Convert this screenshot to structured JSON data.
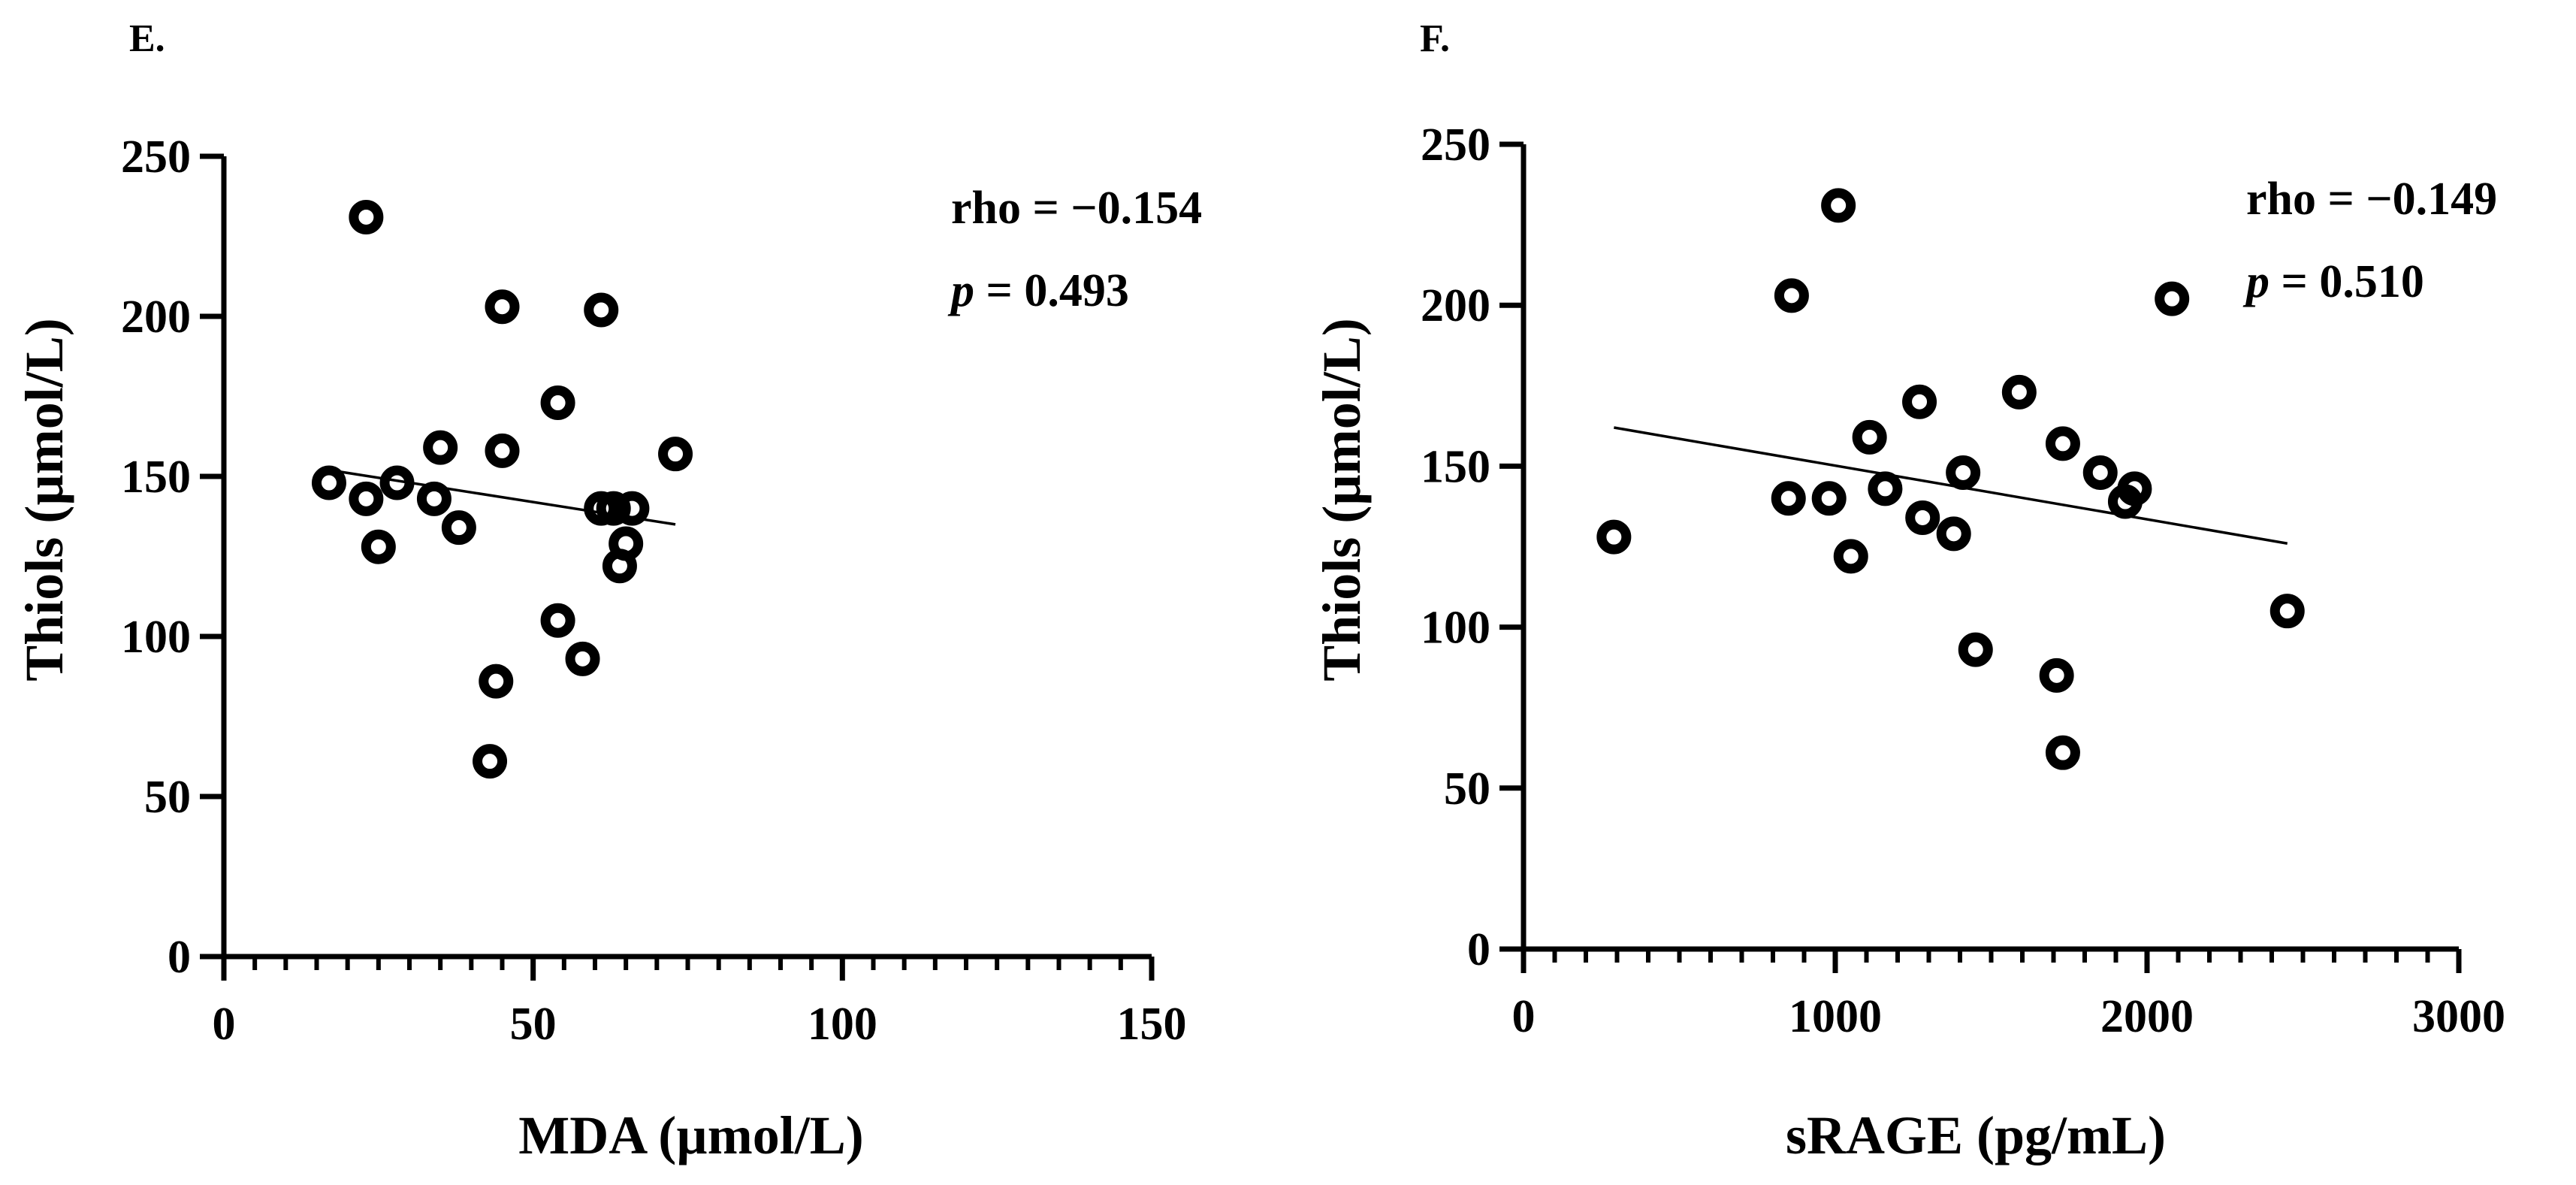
{
  "figure": {
    "panels": [
      "E.",
      "F."
    ]
  },
  "chart_data": [
    {
      "type": "scatter",
      "panel_label": "E.",
      "title": "",
      "xlabel": "MDA (µmol/L)",
      "ylabel": "Thiols (µmol/L)",
      "xlim": [
        0,
        150
      ],
      "ylim": [
        0,
        250
      ],
      "xticks": [
        0,
        50,
        100,
        150
      ],
      "yticks": [
        0,
        50,
        100,
        150,
        200,
        250
      ],
      "x_minor_step": 5,
      "xtick_labels": [
        "0",
        "50",
        "100",
        "150"
      ],
      "ytick_labels": [
        "0",
        "50",
        "100",
        "150",
        "200",
        "250"
      ],
      "grid": false,
      "stats": {
        "rho": "rho = −0.154",
        "p_symbol": "p",
        "p_value": " = 0.493"
      },
      "trendline": {
        "x": [
          17,
          73
        ],
        "y": [
          152,
          135
        ]
      },
      "points": [
        {
          "x": 23,
          "y": 231
        },
        {
          "x": 45,
          "y": 203
        },
        {
          "x": 61,
          "y": 202
        },
        {
          "x": 54,
          "y": 173
        },
        {
          "x": 35,
          "y": 159
        },
        {
          "x": 45,
          "y": 158
        },
        {
          "x": 73,
          "y": 157
        },
        {
          "x": 17,
          "y": 148
        },
        {
          "x": 28,
          "y": 148
        },
        {
          "x": 23,
          "y": 143
        },
        {
          "x": 34,
          "y": 143
        },
        {
          "x": 61,
          "y": 140
        },
        {
          "x": 63,
          "y": 140
        },
        {
          "x": 66,
          "y": 140
        },
        {
          "x": 38,
          "y": 134
        },
        {
          "x": 25,
          "y": 128
        },
        {
          "x": 65,
          "y": 129
        },
        {
          "x": 64,
          "y": 122
        },
        {
          "x": 54,
          "y": 105
        },
        {
          "x": 58,
          "y": 93
        },
        {
          "x": 44,
          "y": 86
        },
        {
          "x": 43,
          "y": 61
        }
      ]
    },
    {
      "type": "scatter",
      "panel_label": "F.",
      "title": "",
      "xlabel": "sRAGE (pg/mL)",
      "ylabel": "Thiols (µmol/L)",
      "xlim": [
        0,
        3000
      ],
      "ylim": [
        0,
        250
      ],
      "xticks": [
        0,
        1000,
        2000,
        3000
      ],
      "yticks": [
        0,
        50,
        100,
        150,
        200,
        250
      ],
      "x_minor_step": 100,
      "xtick_labels": [
        "0",
        "1000",
        "2000",
        "3000"
      ],
      "ytick_labels": [
        "0",
        "50",
        "100",
        "150",
        "200",
        "250"
      ],
      "grid": false,
      "stats": {
        "rho": "rho = −0.149",
        "p_symbol": "p",
        "p_value": " = 0.510"
      },
      "trendline": {
        "x": [
          290,
          2450
        ],
        "y": [
          162,
          126
        ]
      },
      "points": [
        {
          "x": 1010,
          "y": 231
        },
        {
          "x": 860,
          "y": 203
        },
        {
          "x": 2080,
          "y": 202
        },
        {
          "x": 1270,
          "y": 170
        },
        {
          "x": 1590,
          "y": 173
        },
        {
          "x": 1110,
          "y": 159
        },
        {
          "x": 1730,
          "y": 157
        },
        {
          "x": 1410,
          "y": 148
        },
        {
          "x": 1850,
          "y": 148
        },
        {
          "x": 1960,
          "y": 143
        },
        {
          "x": 1160,
          "y": 143
        },
        {
          "x": 850,
          "y": 140
        },
        {
          "x": 980,
          "y": 140
        },
        {
          "x": 1930,
          "y": 139
        },
        {
          "x": 1280,
          "y": 134
        },
        {
          "x": 1380,
          "y": 129
        },
        {
          "x": 290,
          "y": 128
        },
        {
          "x": 1050,
          "y": 122
        },
        {
          "x": 2450,
          "y": 105
        },
        {
          "x": 1450,
          "y": 93
        },
        {
          "x": 1710,
          "y": 85
        },
        {
          "x": 1730,
          "y": 61
        }
      ]
    }
  ]
}
